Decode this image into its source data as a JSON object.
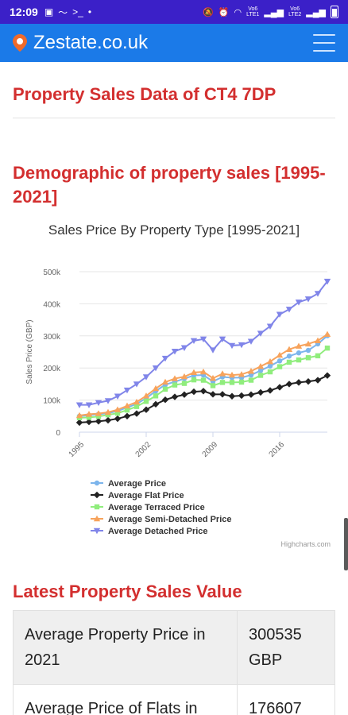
{
  "status": {
    "time": "12:09",
    "net1": "VoB\nLTE1",
    "net2": "VoB\nLTE2"
  },
  "app": {
    "title": "Zestate.co.uk",
    "brand_color": "#1b7ae8",
    "status_color": "#3b20c8"
  },
  "sections": {
    "sales_title": "Property Sales Data of CT4 7DP",
    "demo_title": "Demographic of property sales [1995-2021]",
    "latest_title": "Latest Property Sales Value"
  },
  "table": {
    "rows": [
      {
        "label": "Average Property Price in 2021",
        "value": "300535 GBP"
      },
      {
        "label": "Average Price of Flats in",
        "value": "176607"
      }
    ]
  },
  "chart_data": {
    "type": "line",
    "title": "Sales Price By Property Type [1995-2021]",
    "ylabel": "Sales Price (GBP)",
    "xlabel": "",
    "x": [
      1995,
      1996,
      1997,
      1998,
      1999,
      2000,
      2001,
      2002,
      2003,
      2004,
      2005,
      2006,
      2007,
      2008,
      2009,
      2010,
      2011,
      2012,
      2013,
      2014,
      2015,
      2016,
      2017,
      2018,
      2019,
      2020,
      2021
    ],
    "x_ticks": [
      "1995",
      "2002",
      "2009",
      "2016"
    ],
    "y_ticks": [
      "0",
      "100k",
      "200k",
      "300k",
      "400k",
      "500k"
    ],
    "ylim": [
      0,
      500000
    ],
    "grid": true,
    "legend_position": "bottom",
    "credits": "Highcharts.com",
    "series": [
      {
        "name": "Average Price",
        "color": "#7cb5ec",
        "marker": "circle",
        "values": [
          50000,
          53000,
          56000,
          59000,
          66000,
          77000,
          88000,
          106000,
          128000,
          148000,
          157000,
          167000,
          177000,
          178000,
          158000,
          172000,
          170000,
          170000,
          178000,
          192000,
          206000,
          222000,
          237000,
          247000,
          255000,
          275000,
          300535
        ]
      },
      {
        "name": "Average Flat Price",
        "color": "#222222",
        "marker": "diamond",
        "values": [
          30000,
          32000,
          34000,
          37000,
          42000,
          50000,
          58000,
          70000,
          87000,
          101000,
          110000,
          117000,
          126000,
          128000,
          118000,
          118000,
          112000,
          114000,
          117000,
          124000,
          130000,
          140000,
          150000,
          155000,
          158000,
          162000,
          176607
        ]
      },
      {
        "name": "Average Terraced Price",
        "color": "#90ed7d",
        "marker": "square",
        "values": [
          45000,
          46000,
          49000,
          54000,
          59000,
          69000,
          80000,
          96000,
          113000,
          134000,
          147000,
          152000,
          163000,
          162000,
          145000,
          155000,
          155000,
          156000,
          162000,
          177000,
          188000,
          204000,
          218000,
          225000,
          232000,
          238000,
          262000
        ]
      },
      {
        "name": "Average Semi-Detached Price",
        "color": "#f7a35c",
        "marker": "triangle",
        "values": [
          52000,
          56000,
          58000,
          62000,
          70000,
          82000,
          94000,
          113000,
          136000,
          156000,
          167000,
          173000,
          186000,
          188000,
          168000,
          182000,
          178000,
          180000,
          190000,
          205000,
          220000,
          240000,
          258000,
          268000,
          275000,
          285000,
          305000
        ]
      },
      {
        "name": "Average Detached Price",
        "color": "#8085e9",
        "marker": "triangle-down",
        "values": [
          85000,
          85000,
          92000,
          98000,
          112000,
          131000,
          150000,
          172000,
          200000,
          230000,
          252000,
          263000,
          285000,
          290000,
          256000,
          290000,
          270000,
          272000,
          283000,
          308000,
          330000,
          367000,
          383000,
          405000,
          415000,
          432000,
          470000
        ]
      }
    ]
  }
}
